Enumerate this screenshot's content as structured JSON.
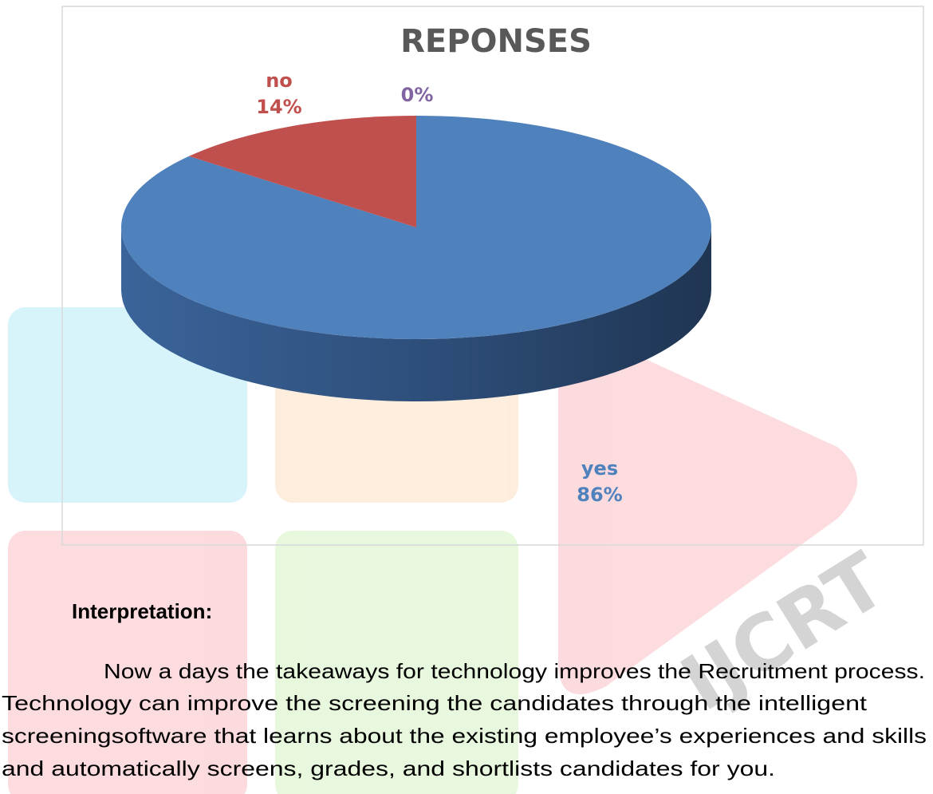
{
  "chart_data": {
    "type": "pie",
    "title": "REPONSES",
    "categories": [
      "yes",
      "no",
      null
    ],
    "values": [
      86,
      14,
      0
    ],
    "value_labels": [
      "86%",
      "14%",
      "0%"
    ],
    "colors": [
      "#4f81bd",
      "#c0504d",
      "#8064a2"
    ]
  },
  "interpretation": {
    "heading": "Interpretation:",
    "lines": [
      "Now a days the takeaways for technology improves the Recruitment process.",
      "Technology can improve the screening the candidates through the intelligent",
      "screeningsoftware that learns about the existing employee’s experiences and skills",
      "and automatically screens, grades, and shortlists candidates for you."
    ]
  },
  "watermark": "IJCRT"
}
